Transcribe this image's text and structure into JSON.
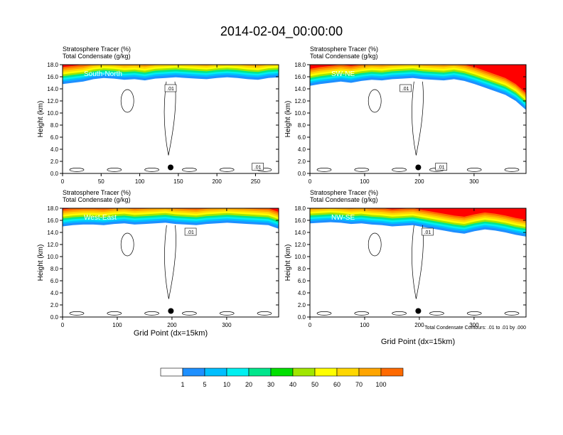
{
  "title": "2014-02-04_00:00:00",
  "field_labels": [
    "Stratosphere Tracer   (%)",
    "Total Condensate   (g/kg)"
  ],
  "ylabel": "Height (km)",
  "xlabel": "Grid Point (dx=15km)",
  "contour_note": "Total Condensate Contours: .01 to .01 by .000",
  "contour_label": ".01",
  "colors": {
    "fill_levels": [
      "#ffffff",
      "#1e90ff",
      "#00bfff",
      "#00f0f0",
      "#00e68c",
      "#00e000",
      "#a0e600",
      "#ffff00",
      "#ffd700",
      "#ffa500",
      "#ff6a00",
      "#ff0000"
    ]
  },
  "chart_data": [
    {
      "type": "heatmap",
      "panel": "South-North",
      "xlim": [
        0,
        280
      ],
      "xticks": [
        0,
        50,
        100,
        150,
        200,
        250
      ],
      "ylim": [
        0,
        18
      ],
      "yticks": [
        "0.0",
        "2.0",
        "4.0",
        "6.0",
        "8.0",
        "10.0",
        "12.0",
        "14.0",
        "16.0",
        "18.0"
      ],
      "label": "South-North",
      "marker_x": 140,
      "contour_labels_x": [
        140,
        253
      ]
    },
    {
      "type": "heatmap",
      "panel": "SW-NE",
      "xlim": [
        0,
        395
      ],
      "xticks": [
        0,
        100,
        200,
        300
      ],
      "ylim": [
        0,
        18
      ],
      "yticks": [
        "0.0",
        "2.0",
        "4.0",
        "6.0",
        "8.0",
        "10.0",
        "12.0",
        "14.0",
        "16.0",
        "18.0"
      ],
      "label": "SW-NE",
      "marker_x": 198,
      "contour_labels_x": [
        175,
        240
      ]
    },
    {
      "type": "heatmap",
      "panel": "West-East",
      "xlim": [
        0,
        395
      ],
      "xticks": [
        0,
        100,
        200,
        300
      ],
      "ylim": [
        0,
        18
      ],
      "yticks": [
        "0.0",
        "2.0",
        "4.0",
        "6.0",
        "8.0",
        "10.0",
        "12.0",
        "14.0",
        "16.0",
        "18.0"
      ],
      "label": "West-East",
      "marker_x": 198,
      "contour_labels_x": [
        234
      ]
    },
    {
      "type": "heatmap",
      "panel": "NW-SE",
      "xlim": [
        0,
        395
      ],
      "xticks": [
        0,
        100,
        200,
        300
      ],
      "ylim": [
        0,
        18
      ],
      "yticks": [
        "0.0",
        "2.0",
        "4.0",
        "6.0",
        "8.0",
        "10.0",
        "12.0",
        "14.0",
        "16.0",
        "18.0"
      ],
      "label": "NW-SE",
      "marker_x": 198,
      "contour_labels_x": [
        215
      ]
    }
  ],
  "colorbar": {
    "labels": [
      "1",
      "5",
      "10",
      "20",
      "30",
      "40",
      "50",
      "60",
      "70",
      "100"
    ]
  }
}
